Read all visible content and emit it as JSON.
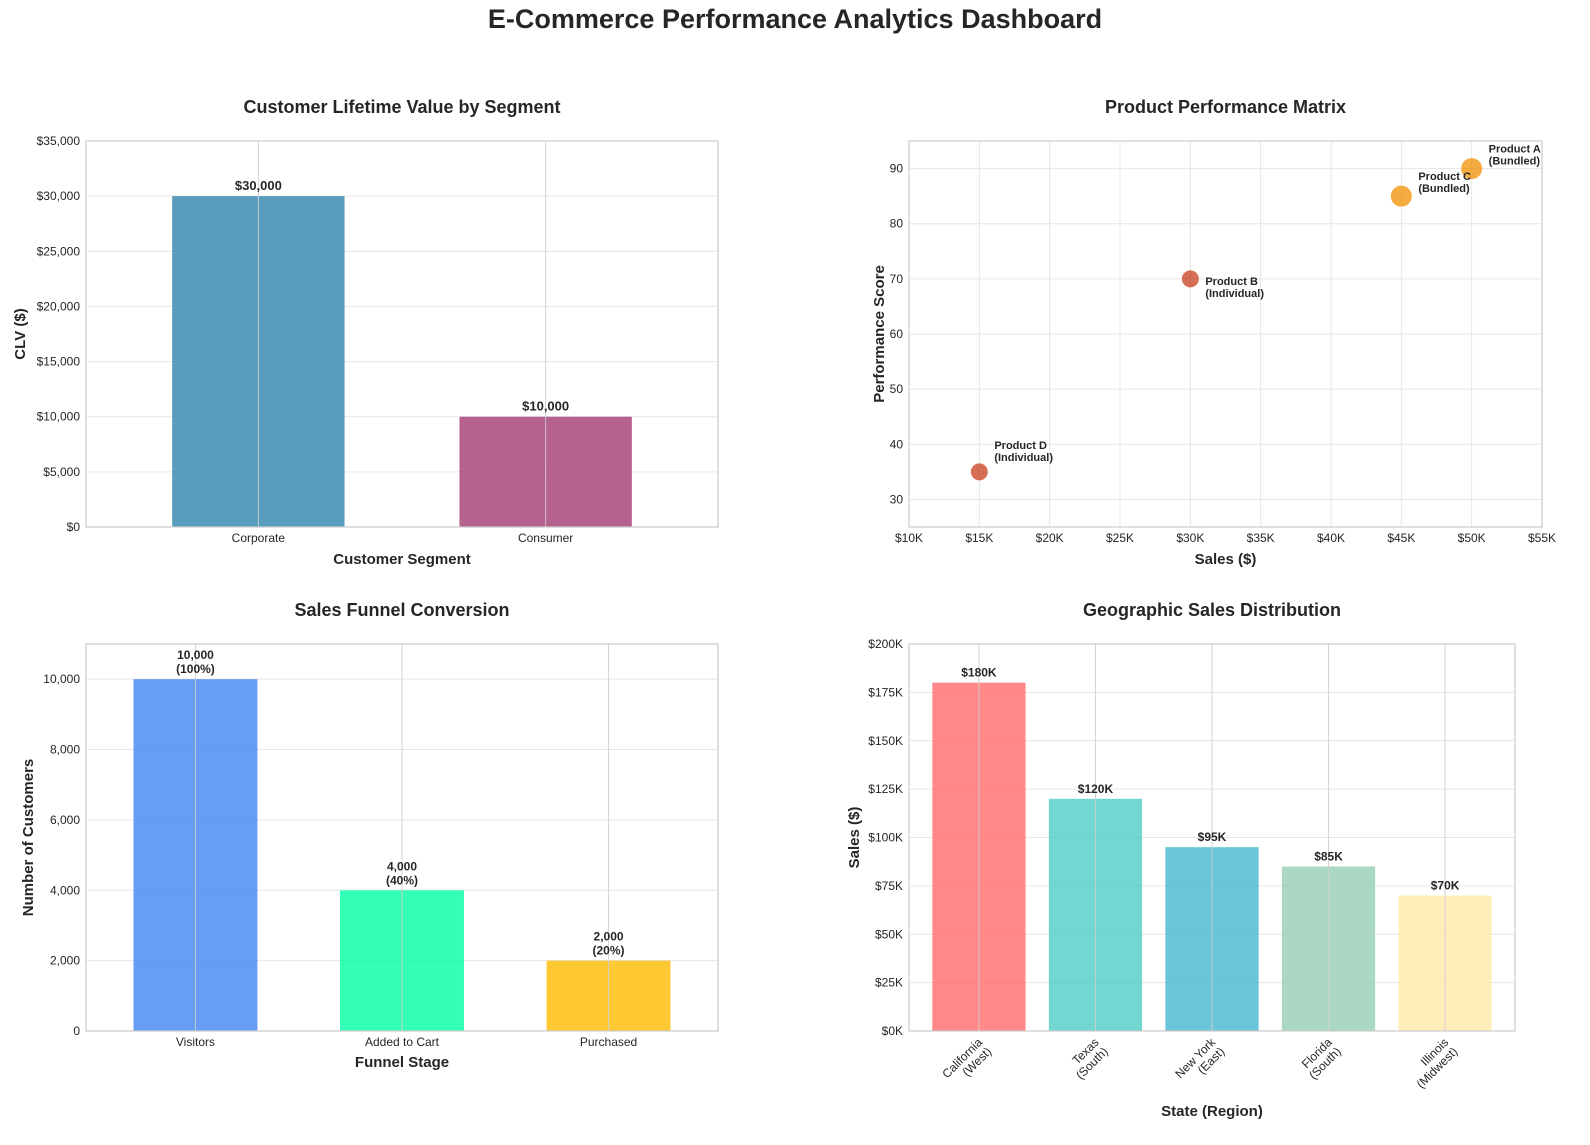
{
  "suptitle": "E-Commerce Performance Analytics Dashboard",
  "chart_data": [
    {
      "type": "bar",
      "title": "Customer Lifetime Value by Segment",
      "xlabel": "Customer Segment",
      "ylabel": "CLV ($)",
      "categories": [
        "Corporate",
        "Consumer"
      ],
      "values": [
        30000,
        10000
      ],
      "value_labels": [
        "$30,000",
        "$10,000"
      ],
      "colors": [
        "#2E86AB",
        "#A23B72"
      ],
      "ylim": [
        0,
        35000
      ],
      "yticks": [
        0,
        5000,
        10000,
        15000,
        20000,
        25000,
        30000,
        35000
      ],
      "ytick_labels": [
        "$0",
        "$5,000",
        "$10,000",
        "$15,000",
        "$20,000",
        "$25,000",
        "$30,000",
        "$35,000"
      ],
      "grid": true
    },
    {
      "type": "scatter",
      "title": "Product Performance Matrix",
      "xlabel": "Sales ($)",
      "ylabel": "Performance Score",
      "points": [
        {
          "label": "Product A\n(Bundled)",
          "x": 50000,
          "y": 90,
          "color": "#F18F01"
        },
        {
          "label": "Product B\n(Individual)",
          "x": 30000,
          "y": 70,
          "color": "#C73E1D"
        },
        {
          "label": "Product C\n(Bundled)",
          "x": 45000,
          "y": 85,
          "color": "#F18F01"
        },
        {
          "label": "Product D\n(Individual)",
          "x": 15000,
          "y": 35,
          "color": "#C73E1D"
        }
      ],
      "xlim": [
        10000,
        55000
      ],
      "ylim": [
        25,
        95
      ],
      "xticks": [
        10000,
        15000,
        20000,
        25000,
        30000,
        35000,
        40000,
        45000,
        50000,
        55000
      ],
      "xtick_labels": [
        "$10K",
        "$15K",
        "$20K",
        "$25K",
        "$30K",
        "$35K",
        "$40K",
        "$45K",
        "$50K",
        "$55K"
      ],
      "yticks": [
        30,
        40,
        50,
        60,
        70,
        80,
        90
      ],
      "ytick_labels": [
        "30",
        "40",
        "50",
        "60",
        "70",
        "80",
        "90"
      ],
      "grid": true
    },
    {
      "type": "bar",
      "title": "Sales Funnel Conversion",
      "xlabel": "Funnel Stage",
      "ylabel": "Number of Customers",
      "categories": [
        "Visitors",
        "Added to Cart",
        "Purchased"
      ],
      "values": [
        10000,
        4000,
        2000
      ],
      "value_labels": [
        "10,000\n(100%)",
        "4,000\n(40%)",
        "2,000\n(20%)"
      ],
      "colors": [
        "#4285F4",
        "#00FFA3",
        "#FFBB00"
      ],
      "ylim": [
        0,
        11000
      ],
      "yticks": [
        0,
        2000,
        4000,
        6000,
        8000,
        10000
      ],
      "ytick_labels": [
        "0",
        "2,000",
        "4,000",
        "6,000",
        "8,000",
        "10,000"
      ],
      "grid": true
    },
    {
      "type": "bar",
      "title": "Geographic Sales Distribution",
      "xlabel": "State (Region)",
      "ylabel": "Sales ($)",
      "categories": [
        "California\n(West)",
        "Texas\n(South)",
        "New York\n(East)",
        "Florida\n(South)",
        "Illinois\n(Midwest)"
      ],
      "values": [
        180000,
        120000,
        95000,
        85000,
        70000
      ],
      "value_labels": [
        "$180K",
        "$120K",
        "$95K",
        "$85K",
        "$70K"
      ],
      "colors": [
        "#FF6B6B",
        "#4ECDC4",
        "#45B7D1",
        "#96CEB4",
        "#FFEAA7"
      ],
      "ylim": [
        0,
        200000
      ],
      "yticks": [
        0,
        25000,
        50000,
        75000,
        100000,
        125000,
        150000,
        175000,
        200000
      ],
      "ytick_labels": [
        "$0K",
        "$25K",
        "$50K",
        "$75K",
        "$100K",
        "$125K",
        "$150K",
        "$175K",
        "$200K"
      ],
      "grid": true
    }
  ]
}
